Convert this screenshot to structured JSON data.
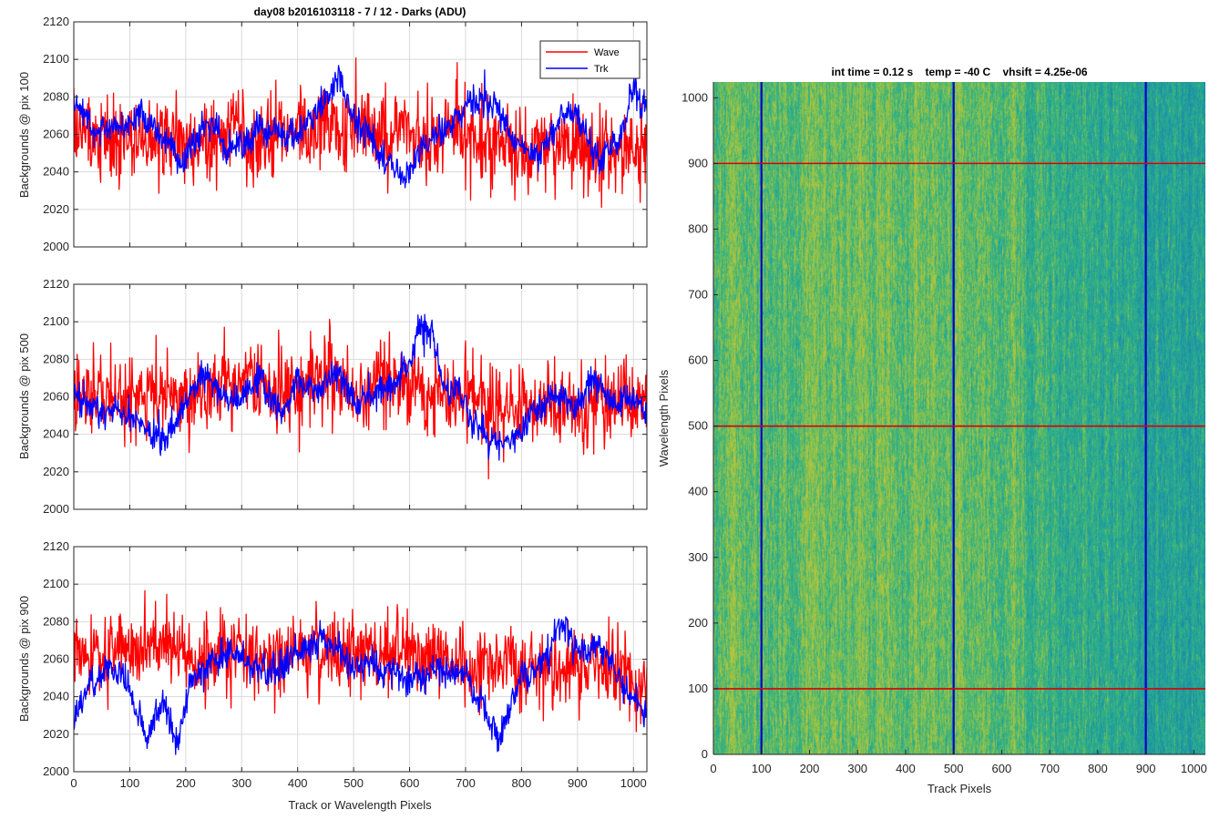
{
  "figure": {
    "background": "#ffffff",
    "wave_color": "#ff0000",
    "trk_color": "#0000ff"
  },
  "chart_data": [
    {
      "type": "line",
      "title": "day08 b2016103118 - 7 / 12 - Darks (ADU)",
      "xlabel": "",
      "ylabel": "Backgrounds @ pix 100",
      "xlim": [
        0,
        1024
      ],
      "ylim": [
        2000,
        2120
      ],
      "xticks": [
        0,
        100,
        200,
        300,
        400,
        500,
        600,
        700,
        800,
        900,
        1000
      ],
      "yticks": [
        2000,
        2020,
        2040,
        2060,
        2080,
        2100,
        2120
      ],
      "grid": true,
      "legend": {
        "placement": "top-right",
        "entries": [
          "Wave",
          "Trk"
        ]
      },
      "series": [
        {
          "name": "Wave",
          "color": "#ff0000",
          "mean": 2058,
          "noise_sd": 11,
          "drift_sd": 3,
          "x": [
            0,
            1024
          ],
          "trend_x": [
            0,
            100,
            200,
            300,
            400,
            450,
            500,
            600,
            700,
            800,
            900,
            1024
          ],
          "trend_y": [
            2060,
            2058,
            2056,
            2058,
            2060,
            2066,
            2064,
            2058,
            2058,
            2053,
            2052,
            2052
          ]
        },
        {
          "name": "Trk",
          "color": "#0000ff",
          "mean": 2060,
          "noise_sd": 4,
          "drift_sd": 2,
          "x": [
            0,
            1024
          ],
          "trend_x": [
            0,
            40,
            80,
            120,
            160,
            190,
            230,
            280,
            330,
            380,
            430,
            470,
            510,
            560,
            590,
            620,
            660,
            700,
            730,
            760,
            790,
            830,
            870,
            900,
            940,
            980,
            1000,
            1024
          ],
          "trend_y": [
            2078,
            2062,
            2064,
            2072,
            2058,
            2042,
            2062,
            2052,
            2064,
            2056,
            2072,
            2086,
            2064,
            2045,
            2034,
            2054,
            2062,
            2072,
            2082,
            2072,
            2052,
            2048,
            2070,
            2072,
            2044,
            2060,
            2086,
            2070
          ]
        }
      ]
    },
    {
      "type": "line",
      "title": "",
      "xlabel": "",
      "ylabel": "Backgrounds @ pix 500",
      "xlim": [
        0,
        1024
      ],
      "ylim": [
        2000,
        2120
      ],
      "xticks": [
        0,
        100,
        200,
        300,
        400,
        500,
        600,
        700,
        800,
        900,
        1000
      ],
      "yticks": [
        2000,
        2020,
        2040,
        2060,
        2080,
        2100,
        2120
      ],
      "grid": true,
      "series": [
        {
          "name": "Wave",
          "color": "#ff0000",
          "mean": 2060,
          "noise_sd": 11,
          "drift_sd": 3,
          "x": [
            0,
            1024
          ],
          "trend_x": [
            0,
            100,
            200,
            300,
            400,
            500,
            600,
            700,
            800,
            900,
            1024
          ],
          "trend_y": [
            2062,
            2062,
            2058,
            2064,
            2066,
            2066,
            2066,
            2060,
            2056,
            2054,
            2054
          ]
        },
        {
          "name": "Trk",
          "color": "#0000ff",
          "mean": 2060,
          "noise_sd": 4,
          "drift_sd": 2,
          "x": [
            0,
            1024
          ],
          "trend_x": [
            0,
            40,
            90,
            130,
            160,
            200,
            230,
            260,
            300,
            330,
            370,
            400,
            440,
            470,
            500,
            540,
            580,
            620,
            640,
            670,
            700,
            720,
            760,
            800,
            850,
            900,
            930,
            970,
            1000,
            1024
          ],
          "trend_y": [
            2064,
            2056,
            2052,
            2044,
            2036,
            2058,
            2072,
            2060,
            2060,
            2072,
            2050,
            2068,
            2060,
            2070,
            2058,
            2062,
            2068,
            2098,
            2090,
            2062,
            2056,
            2046,
            2034,
            2044,
            2062,
            2052,
            2068,
            2056,
            2060,
            2056
          ]
        }
      ]
    },
    {
      "type": "line",
      "title": "",
      "xlabel": "Track or Wavelength Pixels",
      "ylabel": "Backgrounds @ pix 900",
      "xlim": [
        0,
        1024
      ],
      "ylim": [
        2000,
        2120
      ],
      "xticks": [
        0,
        100,
        200,
        300,
        400,
        500,
        600,
        700,
        800,
        900,
        1000
      ],
      "yticks": [
        2000,
        2020,
        2040,
        2060,
        2080,
        2100,
        2120
      ],
      "grid": true,
      "series": [
        {
          "name": "Wave",
          "color": "#ff0000",
          "mean": 2062,
          "noise_sd": 10,
          "drift_sd": 3,
          "x": [
            0,
            1024
          ],
          "trend_x": [
            0,
            100,
            200,
            300,
            400,
            500,
            600,
            700,
            800,
            900,
            1024
          ],
          "trend_y": [
            2064,
            2066,
            2062,
            2062,
            2064,
            2064,
            2064,
            2058,
            2056,
            2054,
            2052
          ]
        },
        {
          "name": "Trk",
          "color": "#0000ff",
          "mean": 2056,
          "noise_sd": 4,
          "drift_sd": 2,
          "x": [
            0,
            1024
          ],
          "trend_x": [
            0,
            25,
            60,
            90,
            130,
            160,
            185,
            210,
            250,
            300,
            350,
            400,
            460,
            500,
            550,
            600,
            650,
            700,
            720,
            760,
            800,
            840,
            870,
            900,
            940,
            980,
            1024
          ],
          "trend_y": [
            2026,
            2044,
            2056,
            2050,
            2016,
            2036,
            2014,
            2050,
            2060,
            2058,
            2050,
            2066,
            2070,
            2060,
            2056,
            2048,
            2056,
            2052,
            2040,
            2016,
            2052,
            2062,
            2078,
            2062,
            2072,
            2046,
            2030
          ]
        }
      ]
    },
    {
      "type": "heatmap",
      "title": "int time = 0.12 s    temp = -40 C    vhsift = 4.25e-06",
      "xlabel": "Track Pixels",
      "ylabel": "Wavelength Pixels",
      "xlim": [
        0,
        1024
      ],
      "ylim": [
        0,
        1024
      ],
      "xticks": [
        0,
        100,
        200,
        300,
        400,
        500,
        600,
        700,
        800,
        900,
        1000
      ],
      "yticks": [
        0,
        100,
        200,
        300,
        400,
        500,
        600,
        700,
        800,
        900,
        1000
      ],
      "colormap": [
        "#1e8aa8",
        "#21a39a",
        "#3db57a",
        "#8fc24a",
        "#c4c43a"
      ],
      "column_profile": {
        "x": [
          0,
          60,
          120,
          200,
          300,
          400,
          500,
          530,
          600,
          700,
          800,
          900,
          1024
        ],
        "level": [
          0.62,
          0.58,
          0.55,
          0.6,
          0.64,
          0.6,
          0.58,
          0.68,
          0.55,
          0.45,
          0.35,
          0.28,
          0.22
        ]
      },
      "overlay_lines": [
        {
          "orientation": "vertical",
          "value": 100,
          "color": "#0000cc"
        },
        {
          "orientation": "vertical",
          "value": 500,
          "color": "#0000cc"
        },
        {
          "orientation": "vertical",
          "value": 900,
          "color": "#0000cc"
        },
        {
          "orientation": "horizontal",
          "value": 100,
          "color": "#dd0000"
        },
        {
          "orientation": "horizontal",
          "value": 500,
          "color": "#dd0000"
        },
        {
          "orientation": "horizontal",
          "value": 900,
          "color": "#dd0000"
        }
      ]
    }
  ]
}
